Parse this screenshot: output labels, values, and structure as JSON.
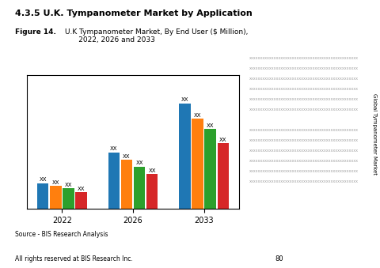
{
  "chart_data": {
    "type": "bar",
    "title": "4.3.5 U.K. Tympanometer Market by Application",
    "subtitle": "U.K Tympanometer Market, By End User ($ Million),\n      2022, 2026 and 2033",
    "annotations": [
      "Figure 14.",
      "Source - BIS Research Analysis",
      "All rights reserved at BIS Research Inc.",
      "80",
      "Global Tympanometer Market",
      "xxxxxxxxxxxxxxxxxxxxxxxxxxxxxxxxxxxxxxxxxxxxxxxx\nxxxxxxxxxxxxxxxxxxxxxxxxxxxxxxxxxxxxxxxxxxxxxxxx\nxxxxxxxxxxxxxxxxxxxxxxxxxxxxxxxxxxxxxxxxxxxxxxxx\nxxxxxxxxxxxxxxxxxxxxxxxxxxxxxxxxxxxxxxxxxxxxxxxx\nxxxxxxxxxxxxxxxxxxxxxxxxxxxxxxxxxxxxxxxxxxxxxxxx\nxxxxxxxxxxxxxxxxxxxxxxxxxxxxxxxxxxxxxxxxxxxxxxxx\n\nxxxxxxxxxxxxxxxxxxxxxxxxxxxxxxxxxxxxxxxxxxxxxxxx\nxxxxxxxxxxxxxxxxxxxxxxxxxxxxxxxxxxxxxxxxxxxxxxxx\nxxxxxxxxxxxxxxxxxxxxxxxxxxxxxxxxxxxxxxxxxxxxxxxx\nxxxxxxxxxxxxxxxxxxxxxxxxxxxxxxxxxxxxxxxxxxxxxxxx\nxxxxxxxxxxxxxxxxxxxxxxxxxxxxxxxxxxxxxxxxxxxxxxxx\nxxxxxxxxxxxxxxxxxxxxxxxxxxxxxxxxxxxxxxxxxxxxxxxx"
    ],
    "categories": [
      "2022",
      "2026",
      "2033"
    ],
    "series": [
      {
        "values": [
          1.0,
          2.2,
          4.1
        ],
        "value_labels": [
          "XX",
          "XX",
          "XX"
        ]
      },
      {
        "values": [
          0.9,
          1.9,
          3.5
        ],
        "value_labels": [
          "XX",
          "XX",
          "XX"
        ]
      },
      {
        "values": [
          0.8,
          1.65,
          3.1
        ],
        "value_labels": [
          "XX",
          "XX",
          "XX"
        ]
      },
      {
        "values": [
          0.65,
          1.35,
          2.55
        ],
        "value_labels": [
          "XX",
          "XX",
          "XX"
        ]
      }
    ],
    "ylim": [
      0,
      5.2
    ],
    "tick_labels": "x",
    "data_labels": true
  }
}
